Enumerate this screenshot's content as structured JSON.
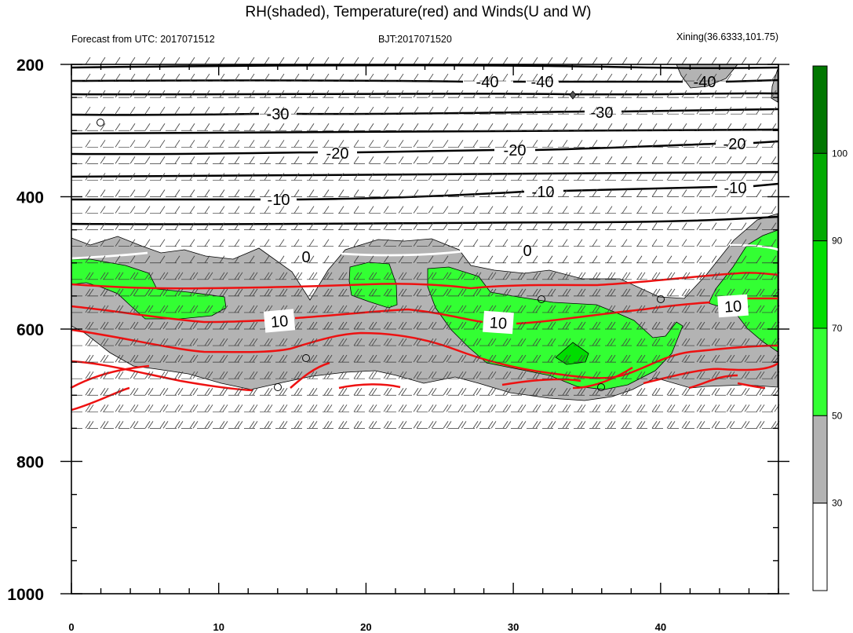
{
  "header": {
    "title": "RH(shaded), Temperature(red) and Winds(U and W)",
    "left": "Forecast from UTC: 2017071512",
    "center": "BJT:2017071520",
    "right": "Xining(36.6333,101.75)"
  },
  "chart_data": {
    "type": "heatmap",
    "title": "RH(shaded), Temperature(red) and Winds(U and W)",
    "x_ticks": [
      "0",
      "10",
      "20",
      "30",
      "40"
    ],
    "xlim": [
      0,
      48
    ],
    "y_ticks": [
      "200",
      "400",
      "600",
      "800",
      "1000"
    ],
    "ylim": [
      200,
      1000
    ],
    "colorbar": {
      "levels": [
        "30",
        "50",
        "70",
        "90",
        "100"
      ],
      "colors": [
        "#ffffff",
        "#b3b3b3",
        "#33ff33",
        "#00dd00",
        "#00aa00",
        "#007700"
      ]
    },
    "contour_labels": {
      "black": [
        "-40",
        "-40",
        "-40",
        "-30",
        "-30",
        "-20",
        "-20",
        "-20",
        "-10",
        "-10",
        "-10"
      ],
      "white": [
        "0",
        "0"
      ],
      "red": [
        "10",
        "10",
        "10"
      ]
    },
    "colors": {
      "temperature_warm": "#ee1111",
      "temperature_cold": "#000000",
      "freezing_line": "#ffffff",
      "rh_30_50": "#b3b3b3",
      "rh_50_70": "#33ff33",
      "rh_70_90": "#00dd00"
    }
  }
}
